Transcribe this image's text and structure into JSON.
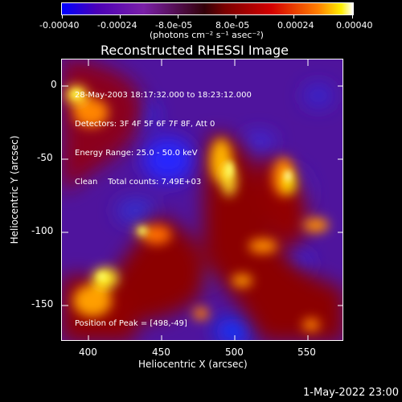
{
  "colorbar": {
    "ticks": [
      "-0.00040",
      "-0.00024",
      "-8.0e-05",
      "8.0e-05",
      "0.00024",
      "0.00040"
    ],
    "units_label": "(photons cm⁻² s⁻¹ asec⁻²)"
  },
  "image": {
    "title": "Reconstructed RHESSI Image",
    "info_lines": [
      "28-May-2003 18:17:32.000 to 18:23:12.000",
      "Detectors: 3F 4F 5F 6F 7F 8F, Att 0",
      "Energy Range: 25.0 - 50.0 keV",
      "Clean    Total counts: 7.49E+03"
    ],
    "peak_text": "Position of Peak = [498,-49]"
  },
  "axes": {
    "x": {
      "title": "Heliocentric X (arcsec)",
      "ticks": [
        "400",
        "450",
        "500",
        "550"
      ]
    },
    "y": {
      "title": "Heliocentric Y (arcsec)",
      "ticks": [
        "0",
        "-50",
        "-100",
        "-150"
      ]
    }
  },
  "footer": {
    "timestamp": "1-May-2022 23:00"
  }
}
